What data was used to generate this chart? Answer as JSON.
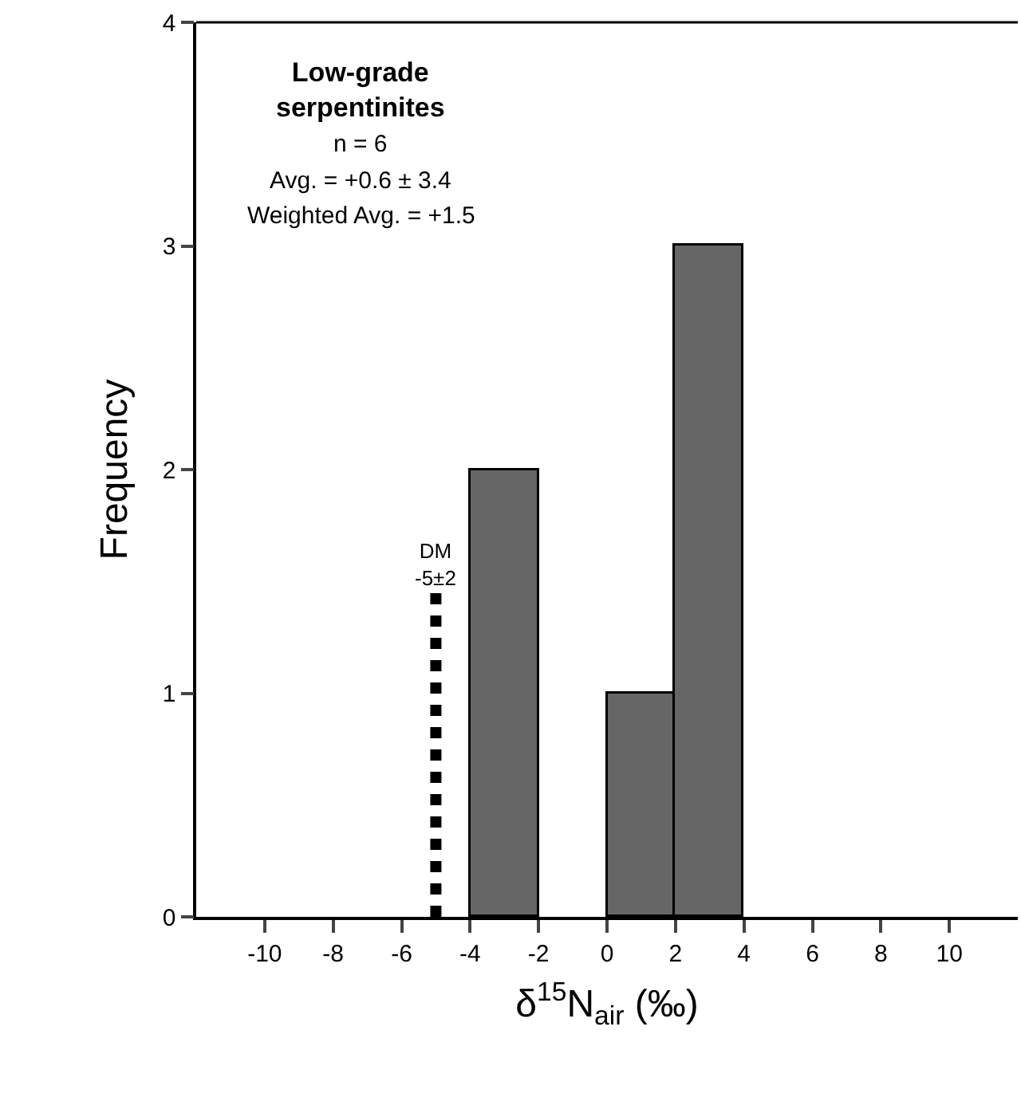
{
  "chart_data": {
    "type": "histogram",
    "xlabel": "δ$^{15}$N$_{air}$ (‰)",
    "ylabel": "Frequency",
    "bins": [
      -4,
      -2,
      0,
      2,
      4
    ],
    "values": [
      2,
      0,
      1,
      3
    ],
    "color": "#666666",
    "xlim": [
      -12,
      12
    ],
    "xticks": [
      -10,
      -8,
      -6,
      -4,
      -2,
      0,
      2,
      4,
      6,
      8,
      10
    ],
    "ylim": [
      0,
      4
    ],
    "yticks": [
      0,
      1,
      2,
      3,
      4
    ],
    "ref_lines": [
      {
        "axis": "x",
        "value": -5,
        "label": "DM\n-5±2",
        "color": "#000000",
        "line_style": "dotted"
      }
    ],
    "annotations": [
      "**Low-grade\nserpentinites**",
      "n = 6",
      "Avg. = +0.6 ± 3.4",
      "Weighted Avg. = +1.5"
    ]
  }
}
